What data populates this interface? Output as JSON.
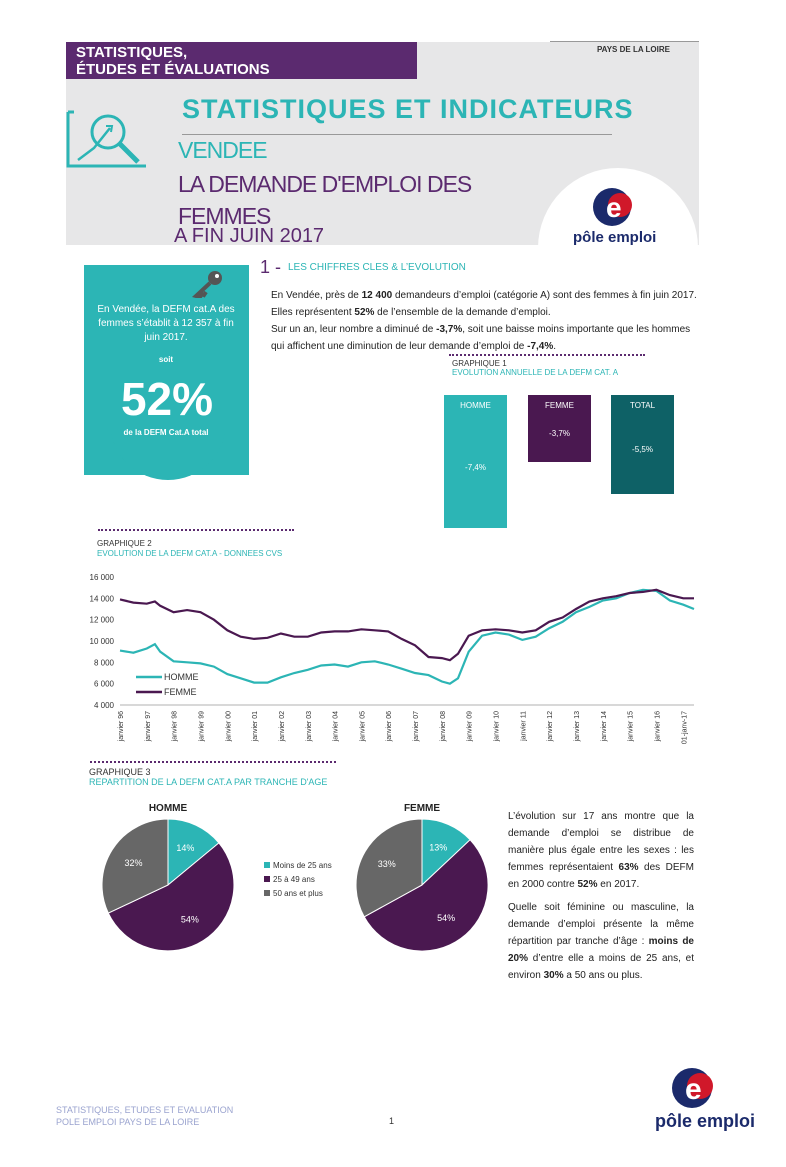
{
  "header": {
    "tag_line1": "STATISTIQUES,",
    "tag_line2": "ÉTUDES ET ÉVALUATIONS",
    "region": "PAYS DE LA LOIRE",
    "main_title": "STATISTIQUES ET INDICATEURS",
    "department": "VENDEE",
    "subtitle": "LA DEMANDE D'EMPLOI DES FEMMES",
    "date": "A FIN JUIN 2017",
    "logo_text": "pôle emploi",
    "icon": "magnifier-chart-icon"
  },
  "keybox": {
    "text": "En Vendée, la DEFM cat.A des femmes s’établit à 12 357 à fin juin 2017.",
    "soit": "soit",
    "percent": "52%",
    "sub": "de la DEFM Cat.A total",
    "icon": "key-icon"
  },
  "section1": {
    "number": "1 -",
    "title": "LES CHIFFRES CLES & L’EVOLUTION",
    "para1_a": "En Vendée, près de ",
    "para1_b": "12 400",
    "para1_c": " demandeurs d’emploi (catégorie A) sont des femmes à fin juin 2017.",
    "para2_a": "Elles représentent ",
    "para2_b": "52%",
    "para2_c": " de l’ensemble de la demande d’emploi.",
    "para3_a": "Sur un an, leur nombre a diminué de ",
    "para3_b": "-3,7%",
    "para3_c": ", soit une baisse moins importante que les hommes qui affichent une diminution de leur demande d’emploi de ",
    "para3_d": "-7,4%",
    "para3_e": "."
  },
  "graph1": {
    "label": "GRAPHIQUE 1",
    "title": "EVOLUTION ANNUELLE DE LA DEFM CAT. A",
    "bars": [
      {
        "name": "HOMME",
        "value_label": "-7,4%",
        "value": -7.4,
        "color": "#2cb5b5"
      },
      {
        "name": "FEMME",
        "value_label": "-3,7%",
        "value": -3.7,
        "color": "#4a1850"
      },
      {
        "name": "TOTAL",
        "value_label": "-5,5%",
        "value": -5.5,
        "color": "#0e6166"
      }
    ]
  },
  "chart_data": [
    {
      "type": "line",
      "label": "GRAPHIQUE 2",
      "title": "EVOLUTION DE LA DEFM CAT.A - DONNEES CVS",
      "ylim": [
        4000,
        16000
      ],
      "yticks": [
        "4 000",
        "6 000",
        "8 000",
        "10 000",
        "12 000",
        "14 000",
        "16 000"
      ],
      "x_labels": [
        "janvier 96",
        "janvier 97",
        "janvier 98",
        "janvier 99",
        "janvier 00",
        "janvier 01",
        "janvier 02",
        "janvier 03",
        "janvier 04",
        "janvier 05",
        "janvier 06",
        "janvier 07",
        "janvier 08",
        "janvier 09",
        "janvier 10",
        "janvier 11",
        "janvier 12",
        "janvier 13",
        "janvier 14",
        "janvier 15",
        "janvier 16",
        "01-janv-17"
      ],
      "x": [
        1996.0,
        1996.5,
        1997.0,
        1997.3,
        1997.5,
        1998.0,
        1998.5,
        1999.0,
        1999.5,
        2000.0,
        2000.5,
        2001.0,
        2001.5,
        2002.0,
        2002.5,
        2003.0,
        2003.5,
        2004.0,
        2004.5,
        2005.0,
        2005.5,
        2006.0,
        2006.5,
        2007.0,
        2007.5,
        2008.0,
        2008.3,
        2008.6,
        2009.0,
        2009.5,
        2010.0,
        2010.5,
        2011.0,
        2011.5,
        2012.0,
        2012.5,
        2013.0,
        2013.5,
        2014.0,
        2014.5,
        2015.0,
        2015.5,
        2016.0,
        2016.5,
        2017.0,
        2017.4
      ],
      "series": [
        {
          "name": "HOMME",
          "color": "#2cb5b5",
          "values": [
            9100,
            8900,
            9300,
            9700,
            9000,
            8100,
            8000,
            7900,
            7600,
            6900,
            6500,
            6100,
            6100,
            6600,
            7000,
            7300,
            7700,
            7800,
            7600,
            8000,
            8100,
            7800,
            7400,
            7000,
            6800,
            6200,
            6000,
            6500,
            9000,
            10500,
            10800,
            10600,
            10100,
            10400,
            11200,
            11800,
            12700,
            13200,
            13800,
            14000,
            14500,
            14800,
            14700,
            13800,
            13400,
            13000
          ]
        },
        {
          "name": "FEMME",
          "color": "#4a1850",
          "values": [
            13900,
            13600,
            13500,
            13700,
            13300,
            12700,
            12900,
            12700,
            12000,
            11000,
            10400,
            10200,
            10300,
            10700,
            10400,
            10400,
            10800,
            10900,
            10900,
            11100,
            11000,
            10900,
            10200,
            9600,
            8500,
            8400,
            8200,
            8800,
            10500,
            11000,
            11100,
            11000,
            10800,
            11000,
            11800,
            12200,
            13000,
            13700,
            14000,
            14200,
            14500,
            14600,
            14800,
            14300,
            14000,
            14000
          ]
        }
      ]
    },
    {
      "type": "pie",
      "label": "GRAPHIQUE 3",
      "title": "REPARTITION DE LA DEFM CAT.A PAR TRANCHE D'AGE",
      "charts": [
        {
          "name": "HOMME",
          "values": [
            14,
            54,
            32
          ],
          "labels": [
            "14%",
            "54%",
            "32%"
          ]
        },
        {
          "name": "FEMME",
          "values": [
            13,
            54,
            33
          ],
          "labels": [
            "13%",
            "54%",
            "33%"
          ]
        }
      ],
      "categories": [
        "Moins de 25 ans",
        "25 à 49 ans",
        "50 ans et plus"
      ],
      "colors": [
        "#2cb5b5",
        "#4a1850",
        "#676767"
      ]
    }
  ],
  "analysis": {
    "p1_a": "L’évolution sur 17 ans montre que la demande d’emploi se distribue de manière plus égale entre les sexes : les femmes représentaient ",
    "p1_b": "63%",
    "p1_c": " des DEFM en 2000 contre ",
    "p1_d": "52%",
    "p1_e": " en 2017.",
    "p2_a": "Quelle soit féminine ou masculine, la demande d’emploi présente la même répartition par tranche d’âge : ",
    "p2_b": "moins de 20%",
    "p2_c": " d’entre elle a moins de 25 ans, et environ ",
    "p2_d": "30%",
    "p2_e": " a 50 ans ou plus."
  },
  "footer": {
    "line1": "STATISTIQUES, ETUDES ET EVALUATION",
    "line2": "POLE EMPLOI PAYS DE LA LOIRE",
    "page": "1"
  }
}
